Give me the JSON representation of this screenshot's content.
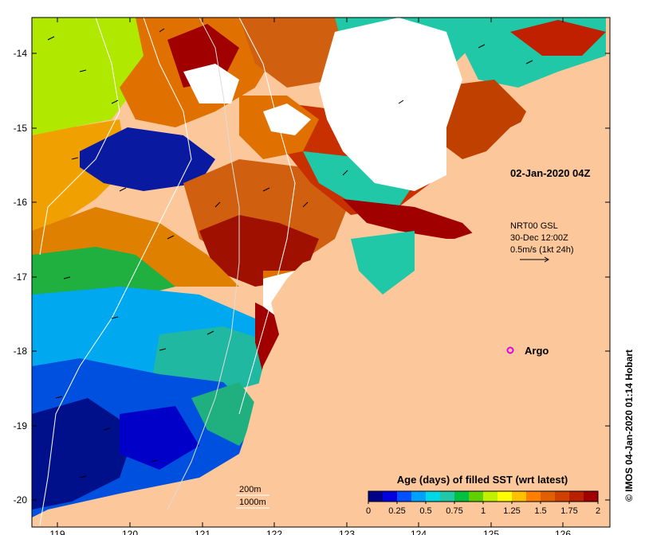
{
  "map": {
    "timestamp_label": "02-Jan-2020 04Z",
    "current_label_lines": [
      "NRT00 GSL",
      "30-Dec 12:00Z",
      "0.5m/s (1kt 24h)"
    ],
    "argo_label": "Argo",
    "isobath_labels": [
      "200m",
      "1000m"
    ],
    "credit": "© IMOS 04-Jan-2020 01:14 Hobart"
  },
  "axes": {
    "x_ticks": [
      "119",
      "120",
      "121",
      "122",
      "123",
      "124",
      "125",
      "126"
    ],
    "y_ticks": [
      "-14",
      "-15",
      "-16",
      "-17",
      "-18",
      "-19",
      "-20"
    ]
  },
  "colorbar": {
    "title": "Age (days) of filled SST (wrt latest)",
    "tick_labels": [
      "0",
      "0.25",
      "0.5",
      "0.75",
      "1",
      "1.25",
      "1.5",
      "1.75",
      "2"
    ],
    "colors": [
      "#00008b",
      "#0000dd",
      "#0050ff",
      "#00a0ff",
      "#00d8e8",
      "#20c8a8",
      "#00c040",
      "#60d000",
      "#c0f000",
      "#ffff00",
      "#ffc000",
      "#ff8000",
      "#e06000",
      "#d04000",
      "#b82000",
      "#a00000"
    ]
  },
  "colors": {
    "land": "#fcc89b",
    "cloud": "#ffffff",
    "frame": "#000000"
  }
}
